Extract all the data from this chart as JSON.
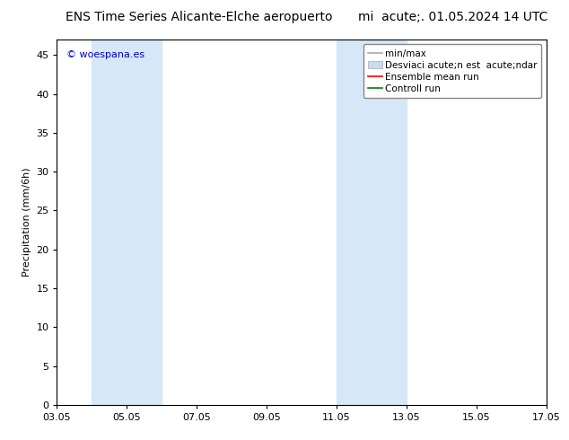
{
  "title_left": "ENS Time Series Alicante-Elche aeropuerto",
  "title_right": "mi  acute;. 01.05.2024 14 UTC",
  "ylabel": "Precipitation (mm/6h)",
  "watermark": "© woespana.es",
  "ylim": [
    0,
    47
  ],
  "yticks": [
    0,
    5,
    10,
    15,
    20,
    25,
    30,
    35,
    40,
    45
  ],
  "xtick_labels": [
    "03.05",
    "05.05",
    "07.05",
    "09.05",
    "11.05",
    "13.05",
    "15.05",
    "17.05"
  ],
  "xtick_positions": [
    0,
    2,
    4,
    6,
    8,
    10,
    12,
    14
  ],
  "shaded_regions": [
    {
      "xmin": 1.0,
      "xmax": 3.0
    },
    {
      "xmin": 8.0,
      "xmax": 10.0
    }
  ],
  "shade_color": "#d6e8f7",
  "bg_color": "#ffffff",
  "watermark_color": "#0000cc",
  "font_size_title": 10,
  "font_size_axis": 8,
  "font_size_legend": 7.5,
  "legend_label_minmax": "min/max",
  "legend_label_std": "Desviaci acute;n est  acute;ndar",
  "legend_label_ensemble": "Ensemble mean run",
  "legend_label_control": "Controll run",
  "legend_color_minmax": "#aaaaaa",
  "legend_color_std": "#c8ddf0",
  "legend_color_ensemble": "#ff0000",
  "legend_color_control": "#008000"
}
